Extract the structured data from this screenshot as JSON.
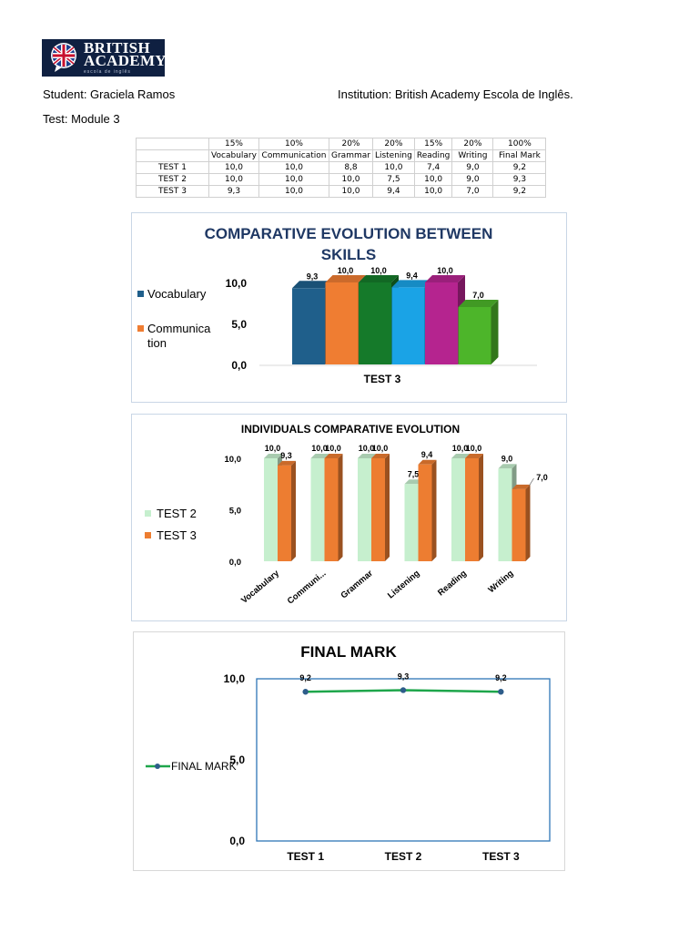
{
  "logo": {
    "line1": "BRITISH",
    "line2": "ACADEMY",
    "line3": "escola de inglês"
  },
  "student": "Student: Graciela Ramos",
  "institution": "Institution: British Academy Escola de Inglês.",
  "test": "Test: Module 3",
  "table": {
    "weights": [
      "",
      "15%",
      "10%",
      "20%",
      "20%",
      "15%",
      "20%",
      "100%"
    ],
    "headers": [
      "",
      "Vocabulary",
      "Communication",
      "Grammar",
      "Listening",
      "Reading",
      "Writing",
      "Final Mark"
    ],
    "rows": [
      [
        "TEST 1",
        "10,0",
        "10,0",
        "8,8",
        "10,0",
        "7,4",
        "9,0",
        "9,2"
      ],
      [
        "TEST 2",
        "10,0",
        "10,0",
        "10,0",
        "7,5",
        "10,0",
        "9,0",
        "9,3"
      ],
      [
        "TEST 3",
        "9,3",
        "10,0",
        "10,0",
        "9,4",
        "10,0",
        "7,0",
        "9,2"
      ]
    ]
  },
  "chart_data": [
    {
      "type": "bar",
      "title": "COMPARATIVE EVOLUTION BETWEEN SKILLS",
      "categories": [
        "TEST 3"
      ],
      "series": [
        {
          "name": "Vocabulary",
          "values": [
            9.3
          ],
          "label": "9,3",
          "color": "#1f5f8b"
        },
        {
          "name": "Communication",
          "values": [
            10.0
          ],
          "label": "10,0",
          "color": "#ef7d32"
        },
        {
          "name": "",
          "values": [
            10.0
          ],
          "label": "10,0",
          "color": "#157a2a"
        },
        {
          "name": "",
          "values": [
            9.4
          ],
          "label": "9,4",
          "color": "#1aa3e6"
        },
        {
          "name": "",
          "values": [
            10.0
          ],
          "label": "10,0",
          "color": "#b5248f"
        },
        {
          "name": "",
          "values": [
            7.0
          ],
          "label": "7,0",
          "color": "#4db52a"
        }
      ],
      "legend_visible": [
        "Vocabulary",
        "Communica tion"
      ],
      "yticks": [
        "0,0",
        "5,0",
        "10,0"
      ],
      "ylim": [
        0,
        10
      ],
      "legend": "left"
    },
    {
      "type": "bar",
      "title": "INDIVIDUALS COMPARATIVE EVOLUTION",
      "categories": [
        "Vocabulary",
        "Communi...",
        "Grammar",
        "Listening",
        "Reading",
        "Writing"
      ],
      "series": [
        {
          "name": "TEST 2",
          "values": [
            10.0,
            10.0,
            10.0,
            7.5,
            10.0,
            9.0
          ],
          "labels": [
            "10,0",
            "10,0",
            "10,0",
            "7,5",
            "10,0",
            "9,0"
          ],
          "color": "#c6efce"
        },
        {
          "name": "TEST 3",
          "values": [
            9.3,
            10.0,
            10.0,
            9.4,
            10.0,
            7.0
          ],
          "labels": [
            "9,3",
            "10,0",
            "10,0",
            "9,4",
            "10,0",
            "7,0"
          ],
          "color": "#ed7d31"
        }
      ],
      "yticks": [
        "0,0",
        "5,0",
        "10,0"
      ],
      "ylim": [
        0,
        10
      ],
      "legend": "left"
    },
    {
      "type": "line",
      "title": "FINAL MARK",
      "categories": [
        "TEST 1",
        "TEST 2",
        "TEST 3"
      ],
      "series": [
        {
          "name": "FINAL MARK",
          "values": [
            9.2,
            9.3,
            9.2
          ],
          "labels": [
            "9,2",
            "9,3",
            "9,2"
          ],
          "color": "#1ea64b"
        }
      ],
      "yticks": [
        "0,0",
        "5,0",
        "10,0"
      ],
      "ylim": [
        0,
        10
      ],
      "legend": "left"
    }
  ]
}
